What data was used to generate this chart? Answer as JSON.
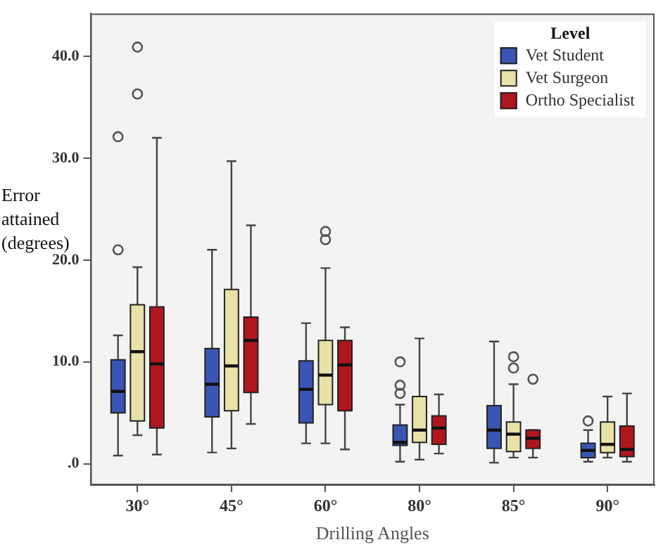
{
  "chart_data": {
    "type": "box",
    "xlabel": "Drilling Angles",
    "ylabel": "Error attained (degrees)",
    "legend_title": "Level",
    "legend": "top right",
    "grid": false,
    "categories": [
      "30°",
      "45°",
      "60°",
      "80°",
      "85°",
      "90°"
    ],
    "ylim": [
      -2.1,
      44.2
    ],
    "yticks": [
      {
        "value": 0,
        "label": ".0"
      },
      {
        "value": 10,
        "label": "10.0"
      },
      {
        "value": 20,
        "label": "20.0"
      },
      {
        "value": 30,
        "label": "30.0"
      },
      {
        "value": 40,
        "label": "40.0"
      }
    ],
    "series": [
      {
        "name": "Vet Student",
        "color": "#3a55b4",
        "boxes": [
          {
            "low": 0.8,
            "q1": 5.0,
            "median": 7.1,
            "q3": 10.2,
            "high": 12.6,
            "outliers": [
              21.0,
              32.1
            ]
          },
          {
            "low": 1.1,
            "q1": 4.6,
            "median": 7.8,
            "q3": 11.3,
            "high": 21.0
          },
          {
            "low": 2.0,
            "q1": 4.0,
            "median": 7.3,
            "q3": 10.1,
            "high": 13.8
          },
          {
            "low": 0.2,
            "q1": 1.8,
            "median": 2.1,
            "q3": 3.8,
            "high": 5.8,
            "outliers": [
              6.9,
              7.7,
              10.0
            ]
          },
          {
            "low": 0.1,
            "q1": 1.5,
            "median": 3.3,
            "q3": 5.7,
            "high": 12.0
          },
          {
            "low": 0.2,
            "q1": 0.6,
            "median": 1.3,
            "q3": 2.0,
            "high": 3.3,
            "outliers": [
              4.2
            ]
          }
        ]
      },
      {
        "name": "Vet Surgeon",
        "color": "#e8e2a8",
        "boxes": [
          {
            "low": 2.8,
            "q1": 4.2,
            "median": 11.0,
            "q3": 15.6,
            "high": 19.3,
            "outliers": [
              36.3,
              40.9
            ]
          },
          {
            "low": 1.5,
            "q1": 5.2,
            "median": 9.6,
            "q3": 17.1,
            "high": 29.7
          },
          {
            "low": 2.0,
            "q1": 5.8,
            "median": 8.7,
            "q3": 12.1,
            "high": 19.2,
            "outliers": [
              22.0,
              22.8
            ]
          },
          {
            "low": 0.4,
            "q1": 2.1,
            "median": 3.3,
            "q3": 6.6,
            "high": 12.3
          },
          {
            "low": 0.6,
            "q1": 1.2,
            "median": 2.9,
            "q3": 4.1,
            "high": 7.8,
            "outliers": [
              9.4,
              10.5
            ]
          },
          {
            "low": 0.6,
            "q1": 1.1,
            "median": 1.9,
            "q3": 4.1,
            "high": 6.6
          }
        ]
      },
      {
        "name": "Ortho Specialist",
        "color": "#b0161e",
        "boxes": [
          {
            "low": 0.9,
            "q1": 3.5,
            "median": 9.8,
            "q3": 15.4,
            "high": 32.0
          },
          {
            "low": 3.9,
            "q1": 7.0,
            "median": 12.1,
            "q3": 14.4,
            "high": 23.4
          },
          {
            "low": 1.4,
            "q1": 5.2,
            "median": 9.7,
            "q3": 12.1,
            "high": 13.4
          },
          {
            "low": 1.0,
            "q1": 1.9,
            "median": 3.5,
            "q3": 4.7,
            "high": 6.8
          },
          {
            "low": 0.6,
            "q1": 1.5,
            "median": 2.5,
            "q3": 3.3,
            "high": 3.3,
            "outliers": [
              8.3
            ]
          },
          {
            "low": 0.2,
            "q1": 0.7,
            "median": 1.4,
            "q3": 3.7,
            "high": 6.9
          }
        ]
      }
    ]
  }
}
